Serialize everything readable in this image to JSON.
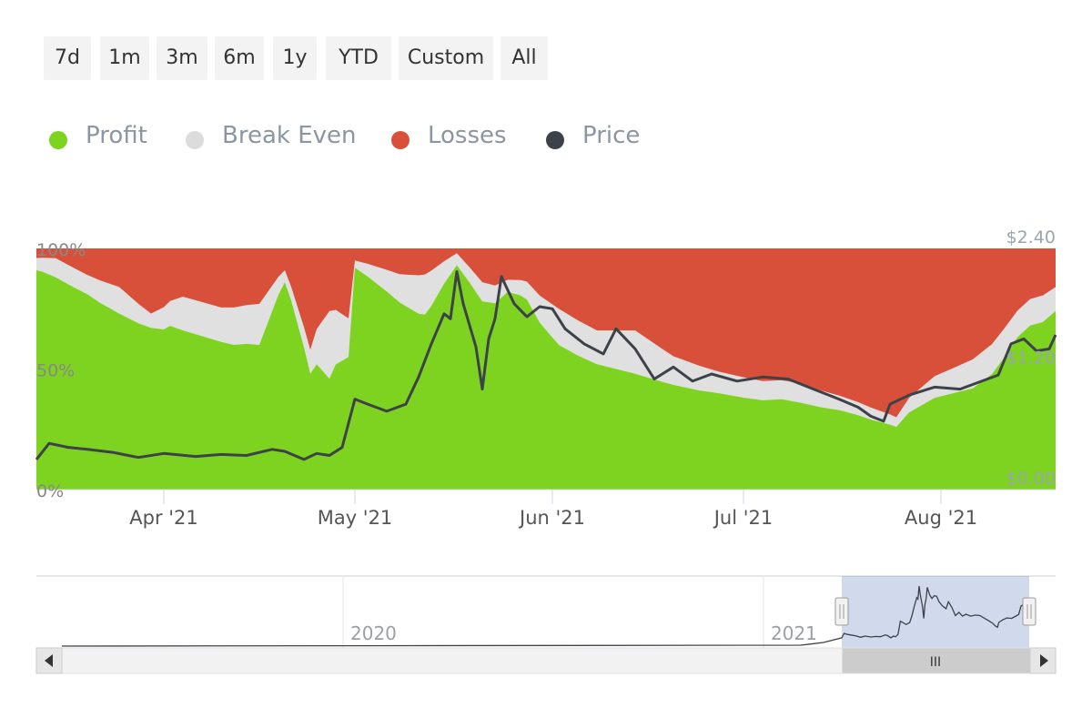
{
  "range_selector": {
    "buttons": [
      "7d",
      "1m",
      "3m",
      "6m",
      "1y",
      "YTD",
      "Custom",
      "All"
    ]
  },
  "legend": [
    {
      "label": "Profit",
      "color": "#7ed321"
    },
    {
      "label": "Break Even",
      "color": "#e0e0e0"
    },
    {
      "label": "Losses",
      "color": "#d9503a"
    },
    {
      "label": "Price",
      "color": "#3d4249"
    }
  ],
  "chart_data": {
    "type": "area",
    "stacking": "percent",
    "x_tick_labels": [
      "Apr '21",
      "May '21",
      "Jun '21",
      "Jul '21",
      "Aug '21"
    ],
    "y_left_ticks": [
      "0%",
      "50%",
      "100%"
    ],
    "y_right_ticks": [
      "$0.00",
      "$1.20",
      "$2.40"
    ],
    "y_left_range": [
      0,
      100
    ],
    "y_right_range": [
      0,
      2.4
    ],
    "x_range": [
      "2021-03-12",
      "2021-08-19"
    ],
    "series": [
      {
        "name": "Profit",
        "color": "#7ed321",
        "points": [
          [
            "2021-03-12",
            91
          ],
          [
            "2021-03-13",
            93
          ],
          [
            "2021-03-15",
            88
          ],
          [
            "2021-03-18",
            83
          ],
          [
            "2021-03-20",
            81
          ],
          [
            "2021-03-22",
            76
          ],
          [
            "2021-03-25",
            73
          ],
          [
            "2021-03-28",
            68
          ],
          [
            "2021-03-30",
            67
          ],
          [
            "2021-04-01",
            66
          ],
          [
            "2021-04-02",
            71
          ],
          [
            "2021-04-04",
            66
          ],
          [
            "2021-04-08",
            62
          ],
          [
            "2021-04-12",
            58
          ],
          [
            "2021-04-14",
            60
          ],
          [
            "2021-04-16",
            60
          ],
          [
            "2021-04-19",
            86
          ],
          [
            "2021-04-21",
            85
          ],
          [
            "2021-04-23",
            61
          ],
          [
            "2021-04-24",
            48
          ],
          [
            "2021-04-25",
            57
          ],
          [
            "2021-04-27",
            46
          ],
          [
            "2021-04-28",
            55
          ],
          [
            "2021-04-30",
            55
          ],
          [
            "2021-05-01",
            92
          ],
          [
            "2021-05-03",
            93
          ],
          [
            "2021-05-06",
            86
          ],
          [
            "2021-05-09",
            77
          ],
          [
            "2021-05-11",
            72
          ],
          [
            "2021-05-13",
            76
          ],
          [
            "2021-05-15",
            90
          ],
          [
            "2021-05-17",
            93
          ],
          [
            "2021-05-19",
            88
          ],
          [
            "2021-05-21",
            78
          ],
          [
            "2021-05-23",
            68
          ],
          [
            "2021-05-25",
            82
          ],
          [
            "2021-05-27",
            80
          ],
          [
            "2021-05-30",
            63
          ],
          [
            "2021-06-02",
            60
          ],
          [
            "2021-06-05",
            55
          ],
          [
            "2021-06-08",
            52
          ],
          [
            "2021-06-11",
            50
          ],
          [
            "2021-06-14",
            48
          ],
          [
            "2021-06-18",
            45
          ],
          [
            "2021-06-21",
            43
          ],
          [
            "2021-06-24",
            41
          ],
          [
            "2021-06-27",
            40
          ],
          [
            "2021-07-01",
            38
          ],
          [
            "2021-07-04",
            37
          ],
          [
            "2021-07-07",
            38
          ],
          [
            "2021-07-10",
            36
          ],
          [
            "2021-07-13",
            34
          ],
          [
            "2021-07-16",
            33
          ],
          [
            "2021-07-19",
            31
          ],
          [
            "2021-07-21",
            29
          ],
          [
            "2021-07-24",
            27
          ],
          [
            "2021-07-25",
            26
          ],
          [
            "2021-07-27",
            32
          ],
          [
            "2021-07-31",
            38
          ],
          [
            "2021-08-03",
            40
          ],
          [
            "2021-08-06",
            42
          ],
          [
            "2021-08-09",
            46
          ],
          [
            "2021-08-11",
            55
          ],
          [
            "2021-08-13",
            66
          ],
          [
            "2021-08-15",
            68
          ],
          [
            "2021-08-17",
            66
          ],
          [
            "2021-08-19",
            74
          ]
        ]
      },
      {
        "name": "Break Even",
        "color": "#e0e0e0",
        "points": [
          [
            "2021-03-12",
            5
          ],
          [
            "2021-03-15",
            8
          ],
          [
            "2021-03-20",
            8
          ],
          [
            "2021-03-25",
            11
          ],
          [
            "2021-03-30",
            6
          ],
          [
            "2021-04-04",
            14
          ],
          [
            "2021-04-10",
            14
          ],
          [
            "2021-04-16",
            17
          ],
          [
            "2021-04-20",
            5
          ],
          [
            "2021-04-24",
            10
          ],
          [
            "2021-04-27",
            28
          ],
          [
            "2021-04-30",
            16
          ],
          [
            "2021-05-01",
            3
          ],
          [
            "2021-05-08",
            12
          ],
          [
            "2021-05-12",
            17
          ],
          [
            "2021-05-17",
            5
          ],
          [
            "2021-05-21",
            8
          ],
          [
            "2021-05-25",
            5
          ],
          [
            "2021-05-28",
            7
          ],
          [
            "2021-06-02",
            15
          ],
          [
            "2021-06-08",
            14
          ],
          [
            "2021-06-14",
            18
          ],
          [
            "2021-06-20",
            12
          ],
          [
            "2021-06-27",
            9
          ],
          [
            "2021-07-04",
            8
          ],
          [
            "2021-07-10",
            8
          ],
          [
            "2021-07-16",
            6
          ],
          [
            "2021-07-21",
            5
          ],
          [
            "2021-07-25",
            4
          ],
          [
            "2021-07-27",
            6
          ],
          [
            "2021-07-31",
            9
          ],
          [
            "2021-08-06",
            12
          ],
          [
            "2021-08-11",
            12
          ],
          [
            "2021-08-15",
            11
          ],
          [
            "2021-08-19",
            10
          ]
        ]
      },
      {
        "name": "Losses",
        "color": "#d9503a",
        "points": [
          [
            "2021-03-12",
            4
          ],
          [
            "2021-03-15",
            4
          ],
          [
            "2021-03-20",
            11
          ],
          [
            "2021-03-25",
            16
          ],
          [
            "2021-03-30",
            27
          ],
          [
            "2021-04-04",
            20
          ],
          [
            "2021-04-10",
            24
          ],
          [
            "2021-04-16",
            23
          ],
          [
            "2021-04-20",
            9
          ],
          [
            "2021-04-24",
            42
          ],
          [
            "2021-04-27",
            26
          ],
          [
            "2021-04-30",
            29
          ],
          [
            "2021-05-01",
            5
          ],
          [
            "2021-05-08",
            11
          ],
          [
            "2021-05-12",
            11
          ],
          [
            "2021-05-17",
            2
          ],
          [
            "2021-05-21",
            14
          ],
          [
            "2021-05-25",
            13
          ],
          [
            "2021-05-28",
            13
          ],
          [
            "2021-06-02",
            25
          ],
          [
            "2021-06-08",
            34
          ],
          [
            "2021-06-14",
            34
          ],
          [
            "2021-06-20",
            45
          ],
          [
            "2021-06-27",
            51
          ],
          [
            "2021-07-04",
            55
          ],
          [
            "2021-07-10",
            56
          ],
          [
            "2021-07-16",
            61
          ],
          [
            "2021-07-21",
            66
          ],
          [
            "2021-07-25",
            70
          ],
          [
            "2021-07-27",
            62
          ],
          [
            "2021-07-31",
            53
          ],
          [
            "2021-08-06",
            46
          ],
          [
            "2021-08-11",
            33
          ],
          [
            "2021-08-15",
            21
          ],
          [
            "2021-08-19",
            16
          ]
        ]
      },
      {
        "name": "Price",
        "color": "#3d4249",
        "axis": "right",
        "points": [
          [
            "2021-03-12",
            0.3
          ],
          [
            "2021-03-14",
            0.46
          ],
          [
            "2021-03-17",
            0.42
          ],
          [
            "2021-03-20",
            0.4
          ],
          [
            "2021-03-24",
            0.37
          ],
          [
            "2021-03-28",
            0.32
          ],
          [
            "2021-04-01",
            0.36
          ],
          [
            "2021-04-06",
            0.33
          ],
          [
            "2021-04-10",
            0.35
          ],
          [
            "2021-04-14",
            0.34
          ],
          [
            "2021-04-18",
            0.4
          ],
          [
            "2021-04-20",
            0.38
          ],
          [
            "2021-04-23",
            0.3
          ],
          [
            "2021-04-25",
            0.36
          ],
          [
            "2021-04-27",
            0.34
          ],
          [
            "2021-04-29",
            0.42
          ],
          [
            "2021-05-01",
            0.9
          ],
          [
            "2021-05-03",
            0.85
          ],
          [
            "2021-05-06",
            0.78
          ],
          [
            "2021-05-09",
            0.85
          ],
          [
            "2021-05-11",
            1.12
          ],
          [
            "2021-05-13",
            1.45
          ],
          [
            "2021-05-15",
            1.75
          ],
          [
            "2021-05-16",
            1.7
          ],
          [
            "2021-05-17",
            2.17
          ],
          [
            "2021-05-18",
            1.85
          ],
          [
            "2021-05-20",
            1.42
          ],
          [
            "2021-05-21",
            1.0
          ],
          [
            "2021-05-22",
            1.5
          ],
          [
            "2021-05-23",
            1.7
          ],
          [
            "2021-05-24",
            2.12
          ],
          [
            "2021-05-26",
            1.85
          ],
          [
            "2021-05-28",
            1.72
          ],
          [
            "2021-05-30",
            1.82
          ],
          [
            "2021-06-01",
            1.8
          ],
          [
            "2021-06-03",
            1.6
          ],
          [
            "2021-06-06",
            1.45
          ],
          [
            "2021-06-09",
            1.35
          ],
          [
            "2021-06-11",
            1.6
          ],
          [
            "2021-06-14",
            1.4
          ],
          [
            "2021-06-17",
            1.1
          ],
          [
            "2021-06-20",
            1.22
          ],
          [
            "2021-06-23",
            1.08
          ],
          [
            "2021-06-26",
            1.15
          ],
          [
            "2021-06-30",
            1.08
          ],
          [
            "2021-07-04",
            1.12
          ],
          [
            "2021-07-08",
            1.1
          ],
          [
            "2021-07-12",
            1.0
          ],
          [
            "2021-07-16",
            0.9
          ],
          [
            "2021-07-19",
            0.82
          ],
          [
            "2021-07-21",
            0.73
          ],
          [
            "2021-07-23",
            0.68
          ],
          [
            "2021-07-24",
            0.85
          ],
          [
            "2021-07-27",
            0.94
          ],
          [
            "2021-07-31",
            1.02
          ],
          [
            "2021-08-04",
            1.0
          ],
          [
            "2021-08-07",
            1.07
          ],
          [
            "2021-08-10",
            1.14
          ],
          [
            "2021-08-12",
            1.45
          ],
          [
            "2021-08-14",
            1.5
          ],
          [
            "2021-08-16",
            1.38
          ],
          [
            "2021-08-18",
            1.4
          ],
          [
            "2021-08-19",
            1.54
          ]
        ]
      }
    ]
  },
  "navigator": {
    "labels": [
      "2020",
      "2021"
    ],
    "scrollbar_thumb_label": "III"
  }
}
